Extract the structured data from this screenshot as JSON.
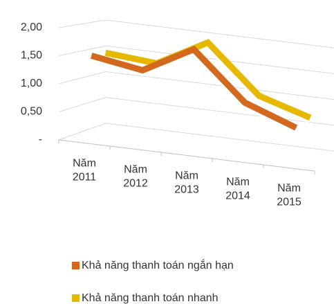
{
  "chart_data": {
    "type": "line3d",
    "categories": [
      "Năm 2011",
      "Năm 2012",
      "Năm 2013",
      "Năm 2014",
      "Năm 2015"
    ],
    "series": [
      {
        "name": "Khả năng thanh toán ngắn hạn",
        "color": "#d2691e",
        "values": [
          1.53,
          1.38,
          1.87,
          1.02,
          0.68
        ]
      },
      {
        "name": "Khả năng thanh toán nhanh",
        "color": "#e6b800",
        "values": [
          1.53,
          1.45,
          1.95,
          1.08,
          0.79
        ]
      }
    ],
    "ylim": [
      0,
      2
    ],
    "yticks": [
      {
        "value": 0,
        "label": "-"
      },
      {
        "value": 0.5,
        "label": "0,50"
      },
      {
        "value": 1,
        "label": "1,00"
      },
      {
        "value": 1.5,
        "label": "1,50"
      },
      {
        "value": 2,
        "label": "2,00"
      }
    ],
    "grid": true,
    "legend": "bottom"
  }
}
